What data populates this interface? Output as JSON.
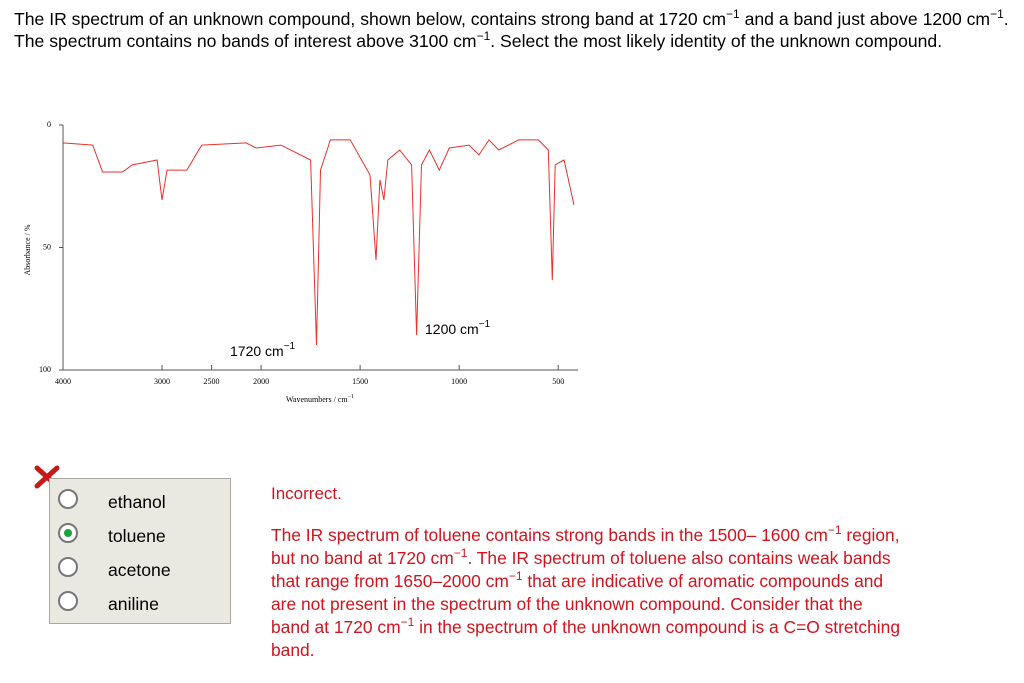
{
  "question": [
    "The IR spectrum of an unknown compound, shown below, contains strong band at 1720 cm",
    "−1",
    " and a band just above 1200 cm",
    "−1",
    ". The spectrum contains no bands of interest above 3100 cm",
    "−1",
    ". Select the most likely identity of the unknown compound."
  ],
  "chart_data": {
    "type": "line",
    "y_label": "Absorbance / %",
    "x_label": [
      "Wavenumbers / cm",
      "−1"
    ],
    "annotations": [
      {
        "text": "1720 cm",
        "sup": "−1"
      },
      {
        "text": "1200 cm",
        "sup": "−1"
      }
    ],
    "color": "#e8322a",
    "xlim": [
      4000,
      400
    ],
    "x_expanded_below": 2000,
    "xticks": [
      4000,
      3000,
      2500,
      2000,
      1500,
      1000,
      500
    ],
    "ylim": [
      0,
      100
    ],
    "yticks": [
      0,
      50,
      100
    ],
    "x": [
      4000,
      3700,
      3600,
      3400,
      3300,
      3050,
      3000,
      2950,
      2750,
      2600,
      2150,
      2050,
      1900,
      1750,
      1720,
      1700,
      1650,
      1550,
      1450,
      1420,
      1400,
      1380,
      1360,
      1300,
      1240,
      1215,
      1190,
      1150,
      1100,
      1050,
      950,
      900,
      850,
      800,
      700,
      600,
      550,
      530,
      515,
      490,
      470,
      420
    ],
    "values": [
      7.3,
      8.2,
      19.2,
      19.2,
      16.3,
      14.3,
      30.6,
      18.4,
      18.4,
      8.2,
      7.3,
      9.4,
      8.2,
      14.3,
      89.8,
      18.4,
      6.1,
      6.1,
      20.4,
      55.1,
      22.4,
      30.6,
      14.3,
      10.2,
      16.3,
      85.7,
      16.3,
      10.2,
      18.4,
      9.4,
      8.2,
      12.2,
      6.1,
      10.2,
      6.1,
      6.1,
      10.2,
      63.3,
      16.3,
      15.1,
      14.3,
      32.7
    ]
  },
  "options": [
    "ethanol",
    "toluene",
    "acetone",
    "aniline"
  ],
  "selected": 1,
  "feedback": {
    "status": "Incorrect.",
    "explanation": [
      "The IR spectrum of toluene contains strong bands in the 1500– 1600 cm",
      "−1",
      " region, but no band at 1720 cm",
      "−1",
      ". The IR spectrum of toluene also contains weak bands that range from 1650–2000 cm",
      "−1",
      " that are indicative of aromatic compounds and are not present in the spectrum of the unknown compound. Consider that the band at 1720 cm",
      "−1",
      " in the spectrum of the unknown compound is a C=O stretching band."
    ]
  }
}
